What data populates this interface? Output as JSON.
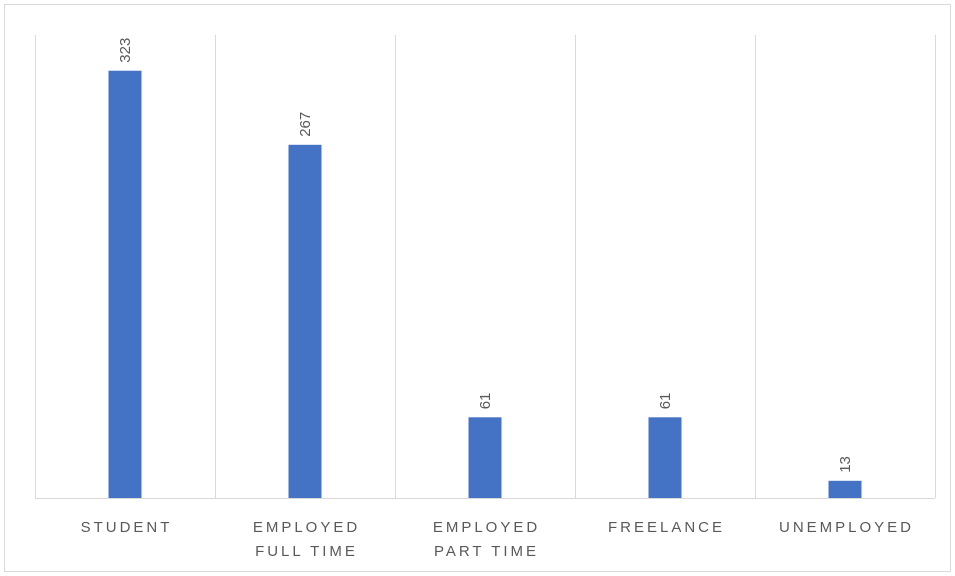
{
  "chart_data": {
    "type": "bar",
    "categories": [
      [
        "STUDENT"
      ],
      [
        "EMPLOYED",
        "FULL TIME"
      ],
      [
        "EMPLOYED",
        "PART TIME"
      ],
      [
        "FREELANCE"
      ],
      [
        "UNEMPLOYED"
      ]
    ],
    "values": [
      323,
      267,
      61,
      61,
      13
    ],
    "title": "",
    "xlabel": "",
    "ylabel": "",
    "ylim": [
      0,
      350
    ],
    "grid": "vertical category separators",
    "legend": "none",
    "data_labels": "rotated above bars",
    "colors": {
      "bar": "#4472C4",
      "gridline": "#d9d9d9",
      "axis": "#d9d9d9",
      "text": "#595959"
    }
  }
}
